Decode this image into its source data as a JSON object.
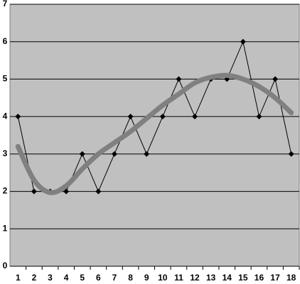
{
  "chart_data": {
    "type": "line",
    "categories": [
      1,
      2,
      3,
      4,
      5,
      6,
      7,
      8,
      9,
      10,
      11,
      12,
      13,
      14,
      15,
      16,
      17,
      18
    ],
    "series": [
      {
        "color": "#000000",
        "marker": "diamond",
        "values": [
          4,
          2,
          2,
          2,
          3,
          2,
          3,
          4,
          3,
          4,
          5,
          4,
          5,
          5,
          6,
          4,
          5,
          3
        ]
      },
      {
        "color": "#808080",
        "smooth": true,
        "values": [
          3.2,
          2.3,
          1.97,
          2.15,
          2.6,
          3.0,
          3.3,
          3.6,
          3.95,
          4.3,
          4.6,
          4.9,
          5.05,
          5.1,
          5.0,
          4.8,
          4.5,
          4.1
        ]
      }
    ],
    "ylim": [
      0,
      7
    ],
    "yticks": [
      0,
      1,
      2,
      3,
      4,
      5,
      6,
      7
    ],
    "grid": true,
    "background": "#c0c0c0"
  }
}
